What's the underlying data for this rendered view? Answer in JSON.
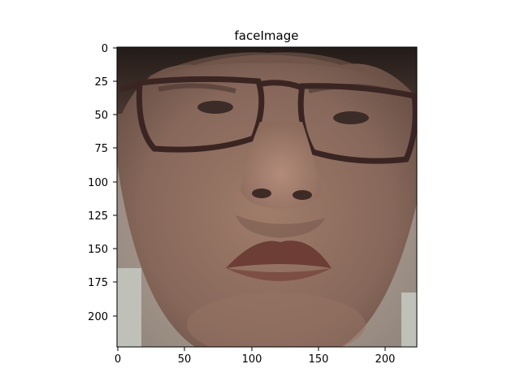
{
  "figure": {
    "title": "faceImage",
    "image_description_name": "face-photo",
    "x_ticks": [
      "0",
      "50",
      "100",
      "150",
      "200"
    ],
    "y_ticks": [
      "0",
      "25",
      "50",
      "75",
      "100",
      "125",
      "150",
      "175",
      "200"
    ],
    "x_range": [
      -0.5,
      223.5
    ],
    "y_range": [
      -0.5,
      223.5
    ]
  },
  "colors": {
    "skin": "#8a6a58",
    "skin_light": "#a88473",
    "skin_dark": "#6b4d40",
    "hair": "#2b211d",
    "glasses": "#3a2522",
    "lips": "#6c3e35",
    "background_bottom": "#c9ccc6"
  }
}
